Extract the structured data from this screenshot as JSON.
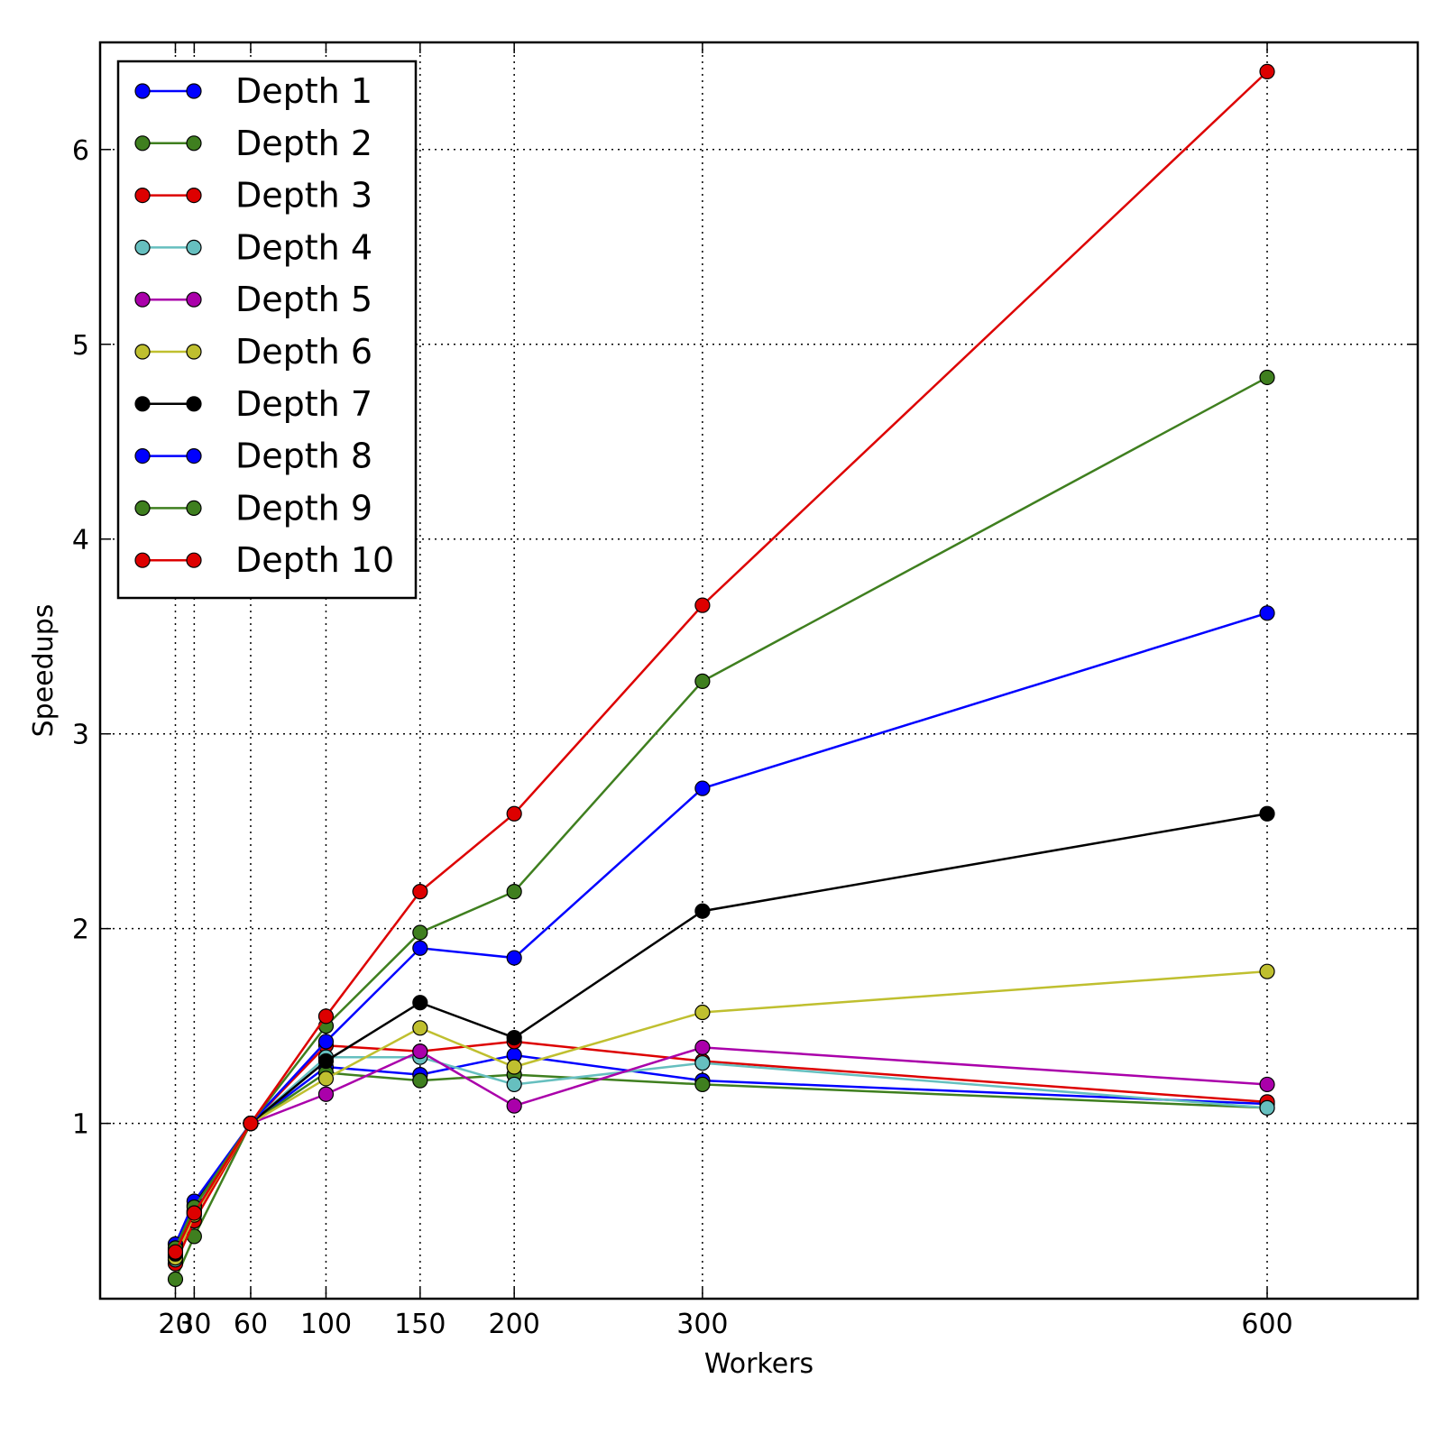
{
  "chart_data": {
    "type": "line",
    "title": "",
    "xlabel": "Workers",
    "ylabel": "Speedups",
    "xlim": [
      -20,
      680
    ],
    "ylim": [
      0.1,
      6.55
    ],
    "x_ticks": [
      20,
      30,
      60,
      100,
      150,
      200,
      300,
      600
    ],
    "x_tick_labels": [
      "20",
      "30",
      "60",
      "100",
      "150",
      "200",
      "300",
      "600"
    ],
    "y_ticks": [
      1,
      2,
      3,
      4,
      5,
      6
    ],
    "y_tick_labels": [
      "1",
      "2",
      "3",
      "4",
      "5",
      "6"
    ],
    "grid": true,
    "legend_position": "top-left",
    "x": [
      20,
      30,
      60,
      100,
      150,
      200,
      300,
      600
    ],
    "series": [
      {
        "name": "Depth 1",
        "color": "#0000ff",
        "values": [
          0.35,
          0.55,
          1.0,
          1.29,
          1.25,
          1.35,
          1.22,
          1.1
        ]
      },
      {
        "name": "Depth 2",
        "color": "#3f7f1f",
        "values": [
          0.2,
          0.42,
          1.0,
          1.26,
          1.22,
          1.25,
          1.2,
          1.08
        ]
      },
      {
        "name": "Depth 3",
        "color": "#dd0000",
        "values": [
          0.28,
          0.5,
          1.0,
          1.4,
          1.37,
          1.42,
          1.32,
          1.11
        ]
      },
      {
        "name": "Depth 4",
        "color": "#66bfbf",
        "values": [
          0.3,
          0.55,
          1.0,
          1.34,
          1.34,
          1.2,
          1.31,
          1.08
        ]
      },
      {
        "name": "Depth 5",
        "color": "#aa00aa",
        "values": [
          0.32,
          0.54,
          1.0,
          1.15,
          1.37,
          1.09,
          1.39,
          1.2
        ]
      },
      {
        "name": "Depth 6",
        "color": "#bfbf2f",
        "values": [
          0.31,
          0.53,
          1.0,
          1.23,
          1.49,
          1.29,
          1.57,
          1.78
        ]
      },
      {
        "name": "Depth 7",
        "color": "#000000",
        "values": [
          0.33,
          0.58,
          1.0,
          1.32,
          1.62,
          1.44,
          2.09,
          2.59
        ]
      },
      {
        "name": "Depth 8",
        "color": "#0000ff",
        "values": [
          0.38,
          0.6,
          1.0,
          1.42,
          1.9,
          1.85,
          2.72,
          3.62
        ]
      },
      {
        "name": "Depth 9",
        "color": "#3f7f1f",
        "values": [
          0.36,
          0.57,
          1.0,
          1.5,
          1.98,
          2.19,
          3.27,
          4.83
        ]
      },
      {
        "name": "Depth 10",
        "color": "#dd0000",
        "values": [
          0.34,
          0.54,
          1.0,
          1.55,
          2.19,
          2.59,
          3.66,
          6.4
        ]
      }
    ]
  }
}
